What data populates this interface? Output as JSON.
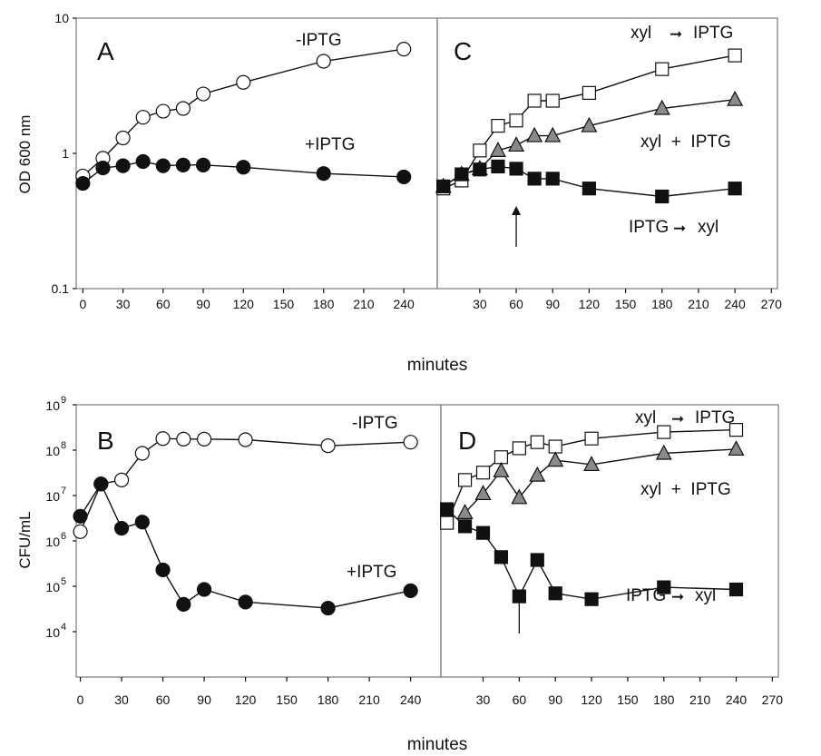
{
  "chart_data": {
    "type": "line",
    "colors": {
      "open": "#ffffff",
      "filled": "#111111",
      "gray": "#8a8a8a",
      "frame": "#7a7a7a",
      "line": "#111111"
    },
    "top": {
      "ylabel": "OD 600 nm",
      "xlabel": "minutes",
      "yscale": "log",
      "ylim": [
        0.1,
        10
      ],
      "y_ticks": [
        {
          "value": 0.1,
          "label": "0.1"
        },
        {
          "value": 1,
          "label": "1"
        },
        {
          "value": 10,
          "label": "10"
        }
      ],
      "panels": [
        {
          "letter": "A",
          "xlim": [
            -5,
            265
          ],
          "x_ticks": [
            "0",
            "30",
            "60",
            "90",
            "120",
            "150",
            "180",
            "210",
            "240"
          ],
          "series": [
            {
              "name": "-IPTG",
              "marker": "circle",
              "fill": "open",
              "x": [
                0,
                15,
                30,
                45,
                60,
                75,
                90,
                120,
                180,
                240
              ],
              "y": [
                0.68,
                0.92,
                1.3,
                1.85,
                2.05,
                2.15,
                2.75,
                3.35,
                4.8,
                5.9
              ]
            },
            {
              "name": "+IPTG",
              "marker": "circle",
              "fill": "filled",
              "x": [
                0,
                15,
                30,
                45,
                60,
                75,
                90,
                120,
                180,
                240
              ],
              "y": [
                0.6,
                0.78,
                0.81,
                0.87,
                0.81,
                0.82,
                0.82,
                0.79,
                0.71,
                0.67
              ]
            }
          ]
        },
        {
          "letter": "C",
          "xlim": [
            -5,
            275
          ],
          "x_ticks": [
            "30",
            "60",
            "90",
            "120",
            "150",
            "180",
            "210",
            "240",
            "270"
          ],
          "arrow_x": 60,
          "series": [
            {
              "name": "xyl",
              "name2": "IPTG",
              "marker": "square",
              "fill": "open",
              "x": [
                0,
                15,
                30,
                45,
                60,
                75,
                90,
                120,
                180,
                240
              ],
              "y": [
                0.55,
                0.63,
                1.05,
                1.6,
                1.75,
                2.45,
                2.45,
                2.8,
                4.2,
                5.3
              ]
            },
            {
              "name": "xyl  +  IPTG",
              "marker": "triangle",
              "fill": "gray",
              "x": [
                0,
                15,
                30,
                45,
                60,
                75,
                90,
                120,
                180,
                240
              ],
              "y": [
                0.57,
                0.7,
                0.77,
                1.05,
                1.15,
                1.35,
                1.35,
                1.6,
                2.15,
                2.5
              ]
            },
            {
              "name": "IPTG",
              "name2": "xyl",
              "marker": "square",
              "fill": "filled",
              "x": [
                0,
                15,
                30,
                45,
                60,
                75,
                90,
                120,
                180,
                240
              ],
              "y": [
                0.57,
                0.7,
                0.76,
                0.8,
                0.77,
                0.65,
                0.65,
                0.55,
                0.48,
                0.55
              ]
            }
          ]
        }
      ]
    },
    "bottom": {
      "ylabel": "CFU/mL",
      "xlabel": "minutes",
      "yscale": "log",
      "ylim": [
        1000,
        1000000000
      ],
      "y_ticks": [
        {
          "value": 10000,
          "base": "10",
          "exp": "4"
        },
        {
          "value": 100000,
          "base": "10",
          "exp": "5"
        },
        {
          "value": 1000000,
          "base": "10",
          "exp": "6"
        },
        {
          "value": 10000000,
          "base": "10",
          "exp": "7"
        },
        {
          "value": 100000000,
          "base": "10",
          "exp": "8"
        },
        {
          "value": 1000000000,
          "base": "10",
          "exp": "9"
        }
      ],
      "panels": [
        {
          "letter": "B",
          "xlim": [
            -3,
            262
          ],
          "x_ticks": [
            "0",
            "30",
            "60",
            "90",
            "120",
            "150",
            "180",
            "210",
            "240"
          ],
          "series": [
            {
              "name": "-IPTG",
              "marker": "circle",
              "fill": "open",
              "x": [
                0,
                15,
                30,
                45,
                60,
                75,
                90,
                120,
                180,
                240
              ],
              "y": [
                1600000,
                18000000,
                22000000,
                85000000,
                180000000,
                175000000,
                175000000,
                170000000,
                125000000,
                150000000
              ]
            },
            {
              "name": "+IPTG",
              "marker": "circle",
              "fill": "filled",
              "x": [
                0,
                15,
                30,
                45,
                60,
                75,
                90,
                120,
                180,
                240
              ],
              "y": [
                3500000,
                18000000,
                1900000,
                2600000,
                230000,
                40000,
                85000,
                45000,
                33000,
                80000
              ]
            }
          ]
        },
        {
          "letter": "D",
          "xlim": [
            -5,
            275
          ],
          "x_ticks": [
            "30",
            "60",
            "90",
            "120",
            "150",
            "180",
            "210",
            "240",
            "270"
          ],
          "arrow_x": 60,
          "series": [
            {
              "name": "xyl",
              "name2": "IPTG",
              "marker": "square",
              "fill": "open",
              "x": [
                0,
                15,
                30,
                45,
                60,
                75,
                90,
                120,
                180,
                240
              ],
              "y": [
                2500000,
                22000000,
                32000000,
                70000000,
                110000000,
                150000000,
                120000000,
                180000000,
                250000000,
                280000000
              ]
            },
            {
              "name": "xyl  +  IPTG",
              "marker": "triangle",
              "fill": "gray",
              "x": [
                15,
                30,
                45,
                60,
                75,
                90,
                120,
                180,
                240
              ],
              "y": [
                4200000,
                11000000,
                35000000,
                9000000,
                28000000,
                60000000,
                48000000,
                85000000,
                105000000
              ]
            },
            {
              "name": "IPTG",
              "name2": "xyl",
              "marker": "square",
              "fill": "filled",
              "x": [
                0,
                15,
                30,
                45,
                60,
                75,
                90,
                120,
                180,
                240
              ],
              "y": [
                5000000,
                2100000,
                1500000,
                440000,
                60000,
                380000,
                70000,
                52000,
                95000,
                85000
              ]
            }
          ]
        }
      ]
    }
  }
}
